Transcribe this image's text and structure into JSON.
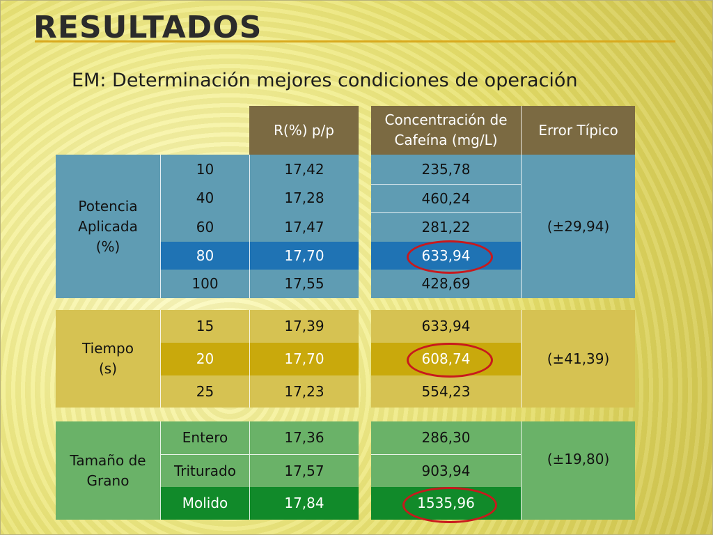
{
  "title": "RESULTADOS",
  "subtitle": "EM: Determinación mejores condiciones de operación",
  "headers": {
    "rendimiento": "R(%) p/p",
    "concentracion": "Concentración de Cafeína (mg/L)",
    "error": "Error Típico"
  },
  "groups": [
    {
      "label_lines": [
        "Potencia",
        "Aplicada",
        "(%)"
      ],
      "rows": [
        {
          "param": "10",
          "r": "17,42",
          "c": "235,78"
        },
        {
          "param": "40",
          "r": "17,28",
          "c": "460,24"
        },
        {
          "param": "60",
          "r": "17,47",
          "c": "281,22"
        },
        {
          "param": "80",
          "r": "17,70",
          "c": "633,94"
        },
        {
          "param": "100",
          "r": "17,55",
          "c": "428,69"
        }
      ],
      "error": "(±29,94)"
    },
    {
      "label_lines": [
        "Tiempo",
        "(s)"
      ],
      "rows": [
        {
          "param": "15",
          "r": "17,39",
          "c": "633,94"
        },
        {
          "param": "20",
          "r": "17,70",
          "c": "608,74"
        },
        {
          "param": "25",
          "r": "17,23",
          "c": "554,23"
        }
      ],
      "error": "(±41,39)"
    },
    {
      "label_lines": [
        "Tamaño de",
        "Grano"
      ],
      "rows": [
        {
          "param": "Entero",
          "r": "17,36",
          "c": "286,30"
        },
        {
          "param": "Triturado",
          "r": "17,57",
          "c": "903,94"
        },
        {
          "param": "Molido",
          "r": "17,84",
          "c": "1535,96"
        }
      ],
      "error": "(±19,80)"
    }
  ],
  "colors": {
    "header": "#7b6a42",
    "potencia": "#5f9cb3",
    "potencia_highlight": "#1f73b4",
    "tiempo": "#d6c252",
    "tiempo_highlight": "#c9a90c",
    "tamano": "#6ab268",
    "tamano_highlight": "#118a2a",
    "highlight_circle": "#c8191d"
  }
}
